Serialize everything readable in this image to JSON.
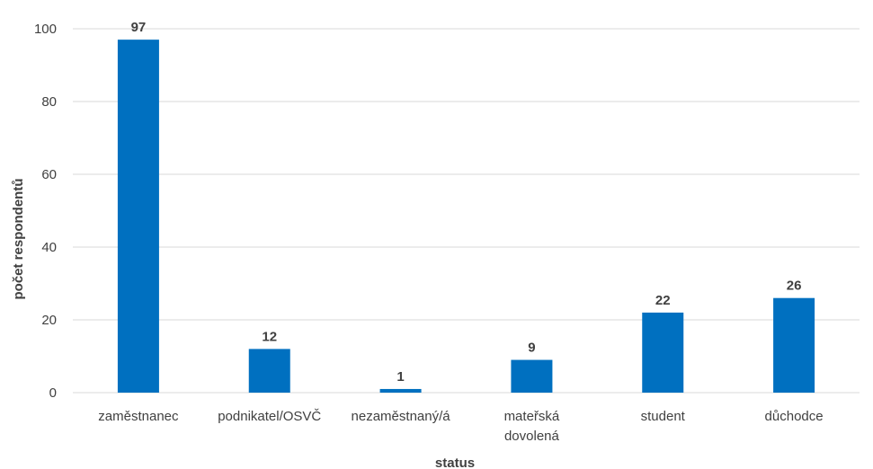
{
  "chart_data": {
    "type": "bar",
    "categories": [
      [
        "zaměstnanec"
      ],
      [
        "podnikatel/OSVČ"
      ],
      [
        "nezaměstnaný/á"
      ],
      [
        "mateřská",
        "dovolená"
      ],
      [
        "student"
      ],
      [
        "důchodce"
      ]
    ],
    "values": [
      97,
      12,
      1,
      9,
      22,
      26
    ],
    "data_labels": [
      "97",
      "12",
      "1",
      "9",
      "22",
      "26"
    ],
    "xlabel": "status",
    "ylabel": "počet respondentů",
    "ylim": [
      0,
      100
    ],
    "yticks": [
      0,
      20,
      40,
      60,
      80,
      100
    ],
    "grid": true,
    "bar_color": "#0070C0",
    "grid_color": "#D9D9D9",
    "text_color": "#404040"
  }
}
